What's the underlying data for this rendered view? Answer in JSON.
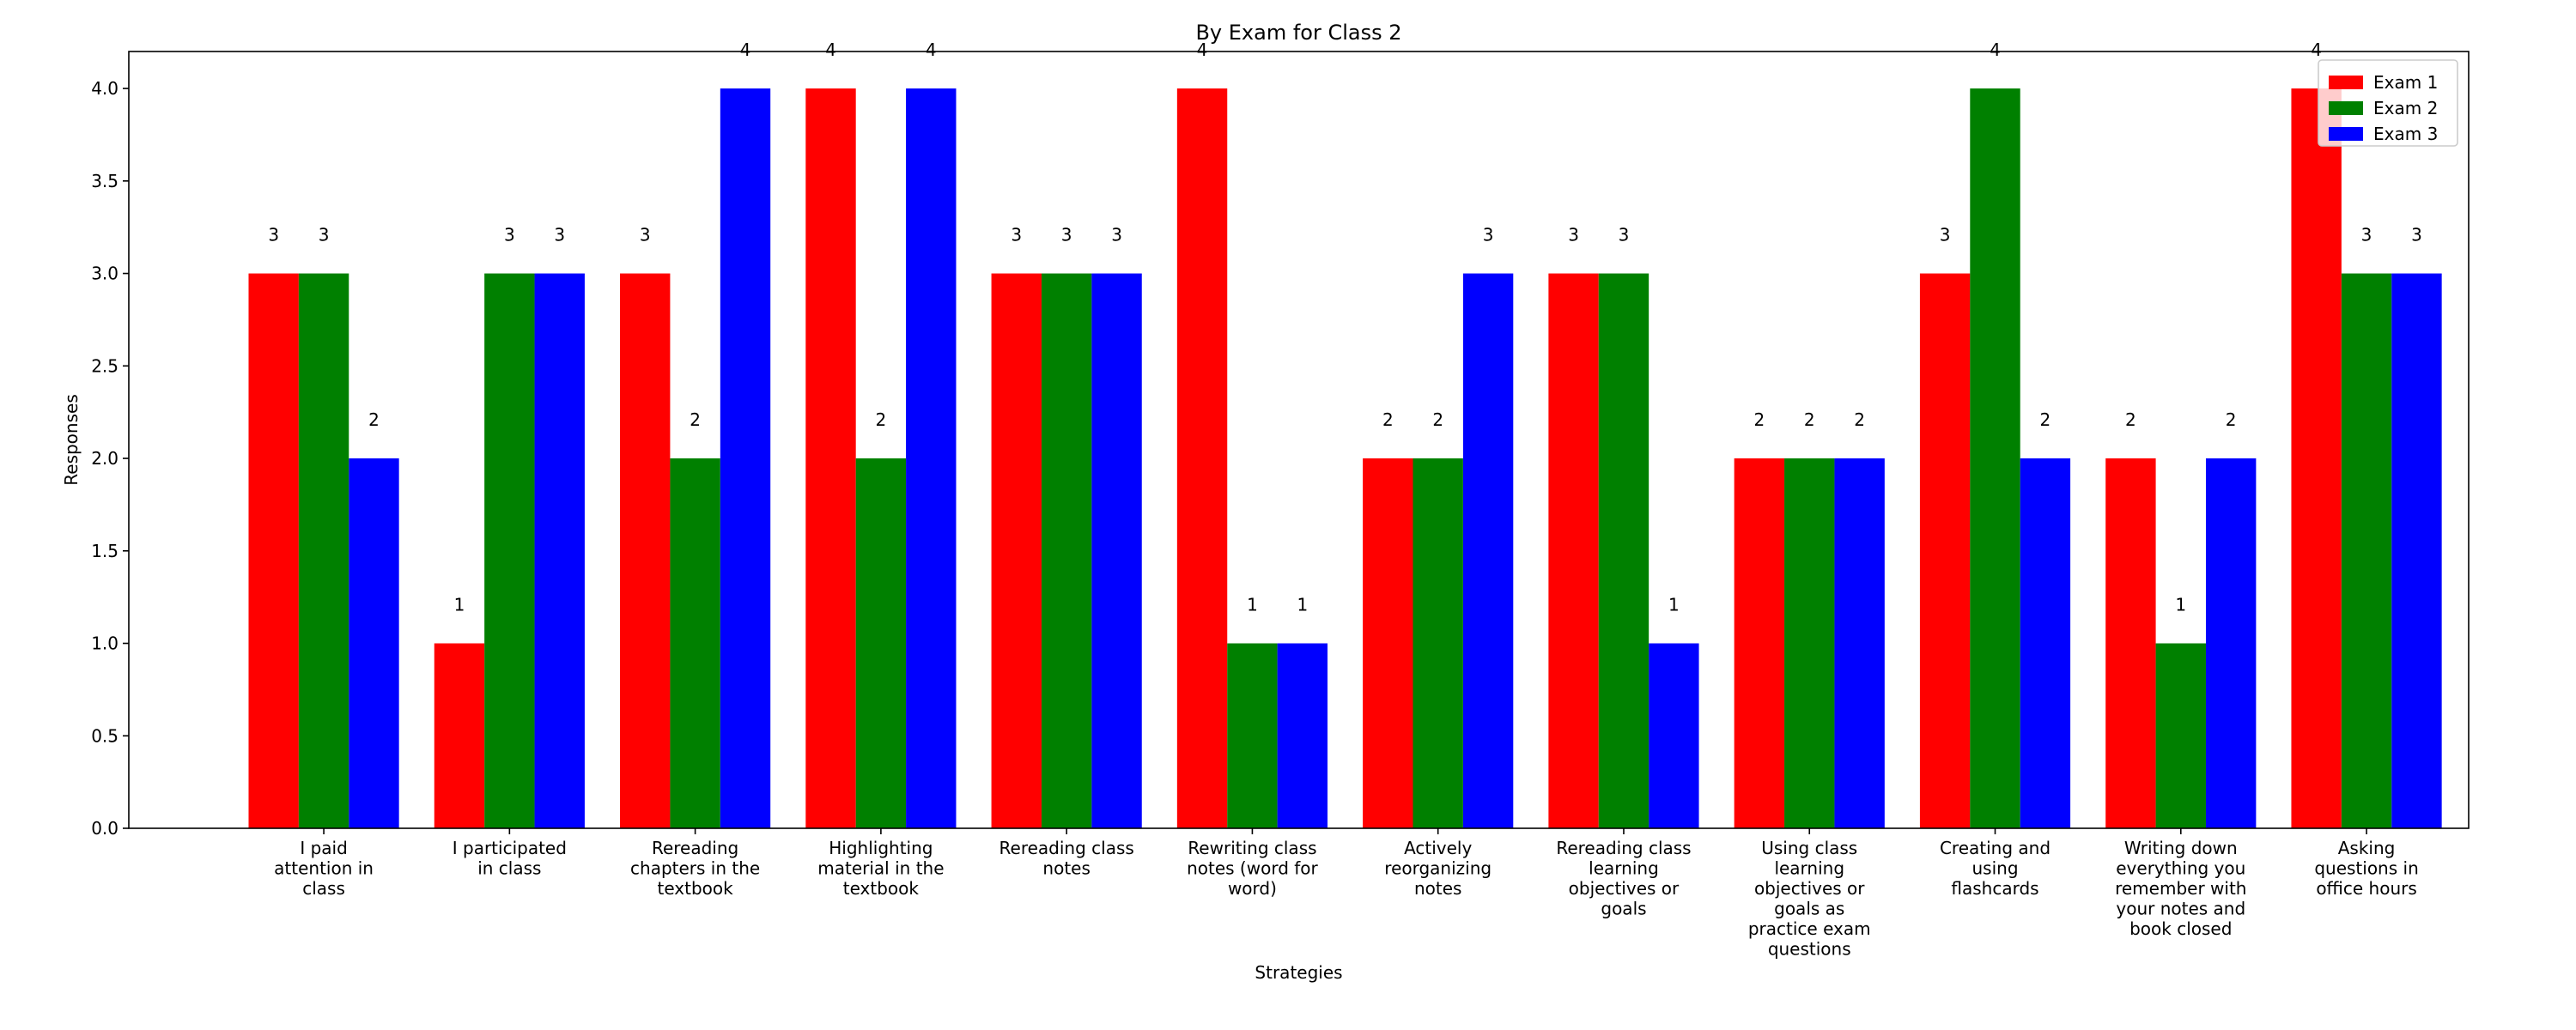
{
  "chart_data": {
    "type": "bar",
    "title": "By Exam for Class 2",
    "xlabel": "Strategies",
    "ylabel": "Responses",
    "ylim": [
      0,
      4.2
    ],
    "yticks": [
      "0.0",
      "0.5",
      "1.0",
      "1.5",
      "2.0",
      "2.5",
      "3.0",
      "3.5",
      "4.0"
    ],
    "grid": false,
    "legend_position": "top-right",
    "categories": [
      [
        "I paid",
        "attention in",
        "class"
      ],
      [
        "I participated",
        "in class"
      ],
      [
        "Rereading",
        "chapters in the",
        "textbook"
      ],
      [
        "Highlighting",
        "material in the",
        "textbook"
      ],
      [
        "Rereading class",
        "notes"
      ],
      [
        "Rewriting class",
        "notes (word for",
        "word)"
      ],
      [
        "Actively",
        "reorganizing",
        "notes"
      ],
      [
        "Rereading class",
        "learning",
        "objectives or",
        "goals"
      ],
      [
        "Using class",
        "learning",
        "objectives or",
        "goals as",
        "practice exam",
        "questions"
      ],
      [
        "Creating and",
        "using",
        "flashcards"
      ],
      [
        "Writing down",
        "everything you",
        "remember with",
        "your notes and",
        "book closed"
      ],
      [
        "Asking",
        "questions in",
        "office hours"
      ]
    ],
    "series": [
      {
        "name": "Exam 1",
        "color": "#ff0000",
        "values": [
          3,
          1,
          3,
          4,
          3,
          4,
          2,
          3,
          2,
          3,
          2,
          4
        ]
      },
      {
        "name": "Exam 2",
        "color": "#008000",
        "values": [
          3,
          3,
          2,
          2,
          3,
          1,
          2,
          3,
          2,
          4,
          1,
          3
        ]
      },
      {
        "name": "Exam 3",
        "color": "#0000ff",
        "values": [
          2,
          3,
          4,
          4,
          3,
          1,
          3,
          1,
          2,
          2,
          2,
          3
        ]
      }
    ]
  }
}
